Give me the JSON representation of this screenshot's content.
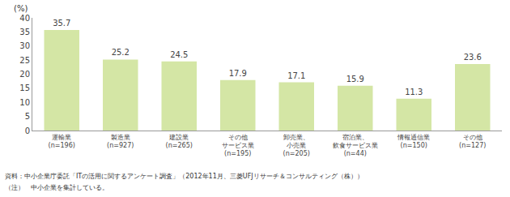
{
  "chart_data": {
    "type": "bar",
    "categories": [
      "運輸業\n(n=196)",
      "製造業\n(n=927)",
      "建設業\n(n=265)",
      "その他\nサービス業\n(n=195)",
      "卸売業、\n小売業\n(n=205)",
      "宿泊業、\n飲食サービス業\n(n=44)",
      "情報通信業\n(n=150)",
      "その他\n(n=127)"
    ],
    "values": [
      35.7,
      25.2,
      24.5,
      17.9,
      17.1,
      15.9,
      11.3,
      23.6
    ],
    "color": "#d4e6a5",
    "ylabel": "(%)",
    "ylim": [
      0,
      40
    ],
    "yticks": [
      0,
      5,
      10,
      15,
      20,
      25,
      30,
      35,
      40
    ],
    "data_labels": true,
    "grid": false,
    "annotations": [
      "資料：中小企業庁委託「ITの活用に関するアンケート調査」（2012年11月、三菱UFJリサーチ＆コンサルティング（株））",
      "（注）　中小企業を集計している。"
    ]
  }
}
